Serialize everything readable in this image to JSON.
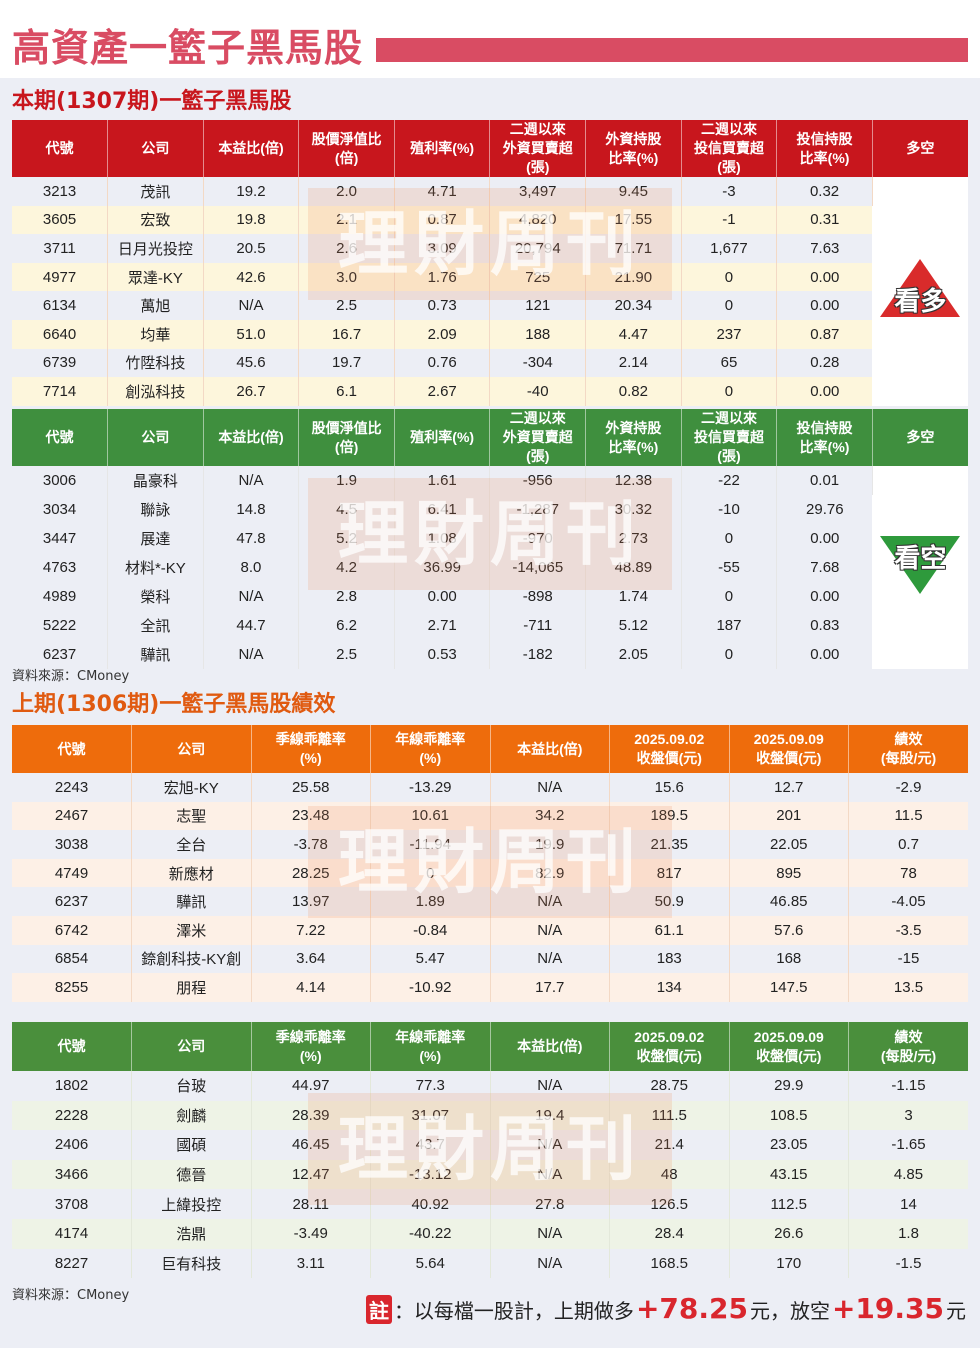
{
  "title": "高資產一籃子黑馬股",
  "watermark": "理財周刊",
  "colors": {
    "title": "#d94c63",
    "bull_header": "#c8161d",
    "bear_header": "#3f8f3e",
    "perf_header": "#ee6c0c",
    "highlight": "#d9262d"
  },
  "current": {
    "title": "本期(1307期)一籃子黑馬股",
    "headers": [
      "代號",
      "公司",
      "本益比(倍)",
      "股價淨值比\n(倍)",
      "殖利率(%)",
      "二週以來\n外資買賣超(張)",
      "外資持股\n比率(%)",
      "二週以來\n投信買賣超(張)",
      "投信持股\n比率(%)",
      "多空"
    ],
    "bull": {
      "label": "看多",
      "rows": [
        [
          "3213",
          "茂訊",
          "19.2",
          "2.0",
          "4.71",
          "3,497",
          "9.45",
          "-3",
          "0.32"
        ],
        [
          "3605",
          "宏致",
          "19.8",
          "2.1",
          "0.87",
          "4,820",
          "17.55",
          "-1",
          "0.31"
        ],
        [
          "3711",
          "日月光投控",
          "20.5",
          "2.6",
          "3.09",
          "20,794",
          "71.71",
          "1,677",
          "7.63"
        ],
        [
          "4977",
          "眾達-KY",
          "42.6",
          "3.0",
          "1.76",
          "725",
          "21.90",
          "0",
          "0.00"
        ],
        [
          "6134",
          "萬旭",
          "N/A",
          "2.5",
          "0.73",
          "121",
          "20.34",
          "0",
          "0.00"
        ],
        [
          "6640",
          "均華",
          "51.0",
          "16.7",
          "2.09",
          "188",
          "4.47",
          "237",
          "0.87"
        ],
        [
          "6739",
          "竹陞科技",
          "45.6",
          "19.7",
          "0.76",
          "-304",
          "2.14",
          "65",
          "0.28"
        ],
        [
          "7714",
          "創泓科技",
          "26.7",
          "6.1",
          "2.67",
          "-40",
          "0.82",
          "0",
          "0.00"
        ]
      ]
    },
    "bear": {
      "label": "看空",
      "rows": [
        [
          "3006",
          "晶豪科",
          "N/A",
          "1.9",
          "1.61",
          "-956",
          "12.38",
          "-22",
          "0.01"
        ],
        [
          "3034",
          "聯詠",
          "14.8",
          "4.5",
          "6.41",
          "-1,287",
          "30.32",
          "-10",
          "29.76"
        ],
        [
          "3447",
          "展達",
          "47.8",
          "5.2",
          "1.08",
          "-970",
          "2.73",
          "0",
          "0.00"
        ],
        [
          "4763",
          "材料*-KY",
          "8.0",
          "4.2",
          "36.99",
          "-14,065",
          "48.89",
          "-55",
          "7.68"
        ],
        [
          "4989",
          "榮科",
          "N/A",
          "2.8",
          "0.00",
          "-898",
          "1.74",
          "0",
          "0.00"
        ],
        [
          "5222",
          "全訊",
          "44.7",
          "6.2",
          "2.71",
          "-711",
          "5.12",
          "187",
          "0.83"
        ],
        [
          "6237",
          "驊訊",
          "N/A",
          "2.5",
          "0.53",
          "-182",
          "2.05",
          "0",
          "0.00"
        ]
      ]
    },
    "source": "資料來源：CMoney"
  },
  "previous": {
    "title": "上期(1306期)一籃子黑馬股績效",
    "headers": [
      "代號",
      "公司",
      "季線乖離率\n(%)",
      "年線乖離率\n(%)",
      "本益比(倍)",
      "2025.09.02\n收盤價(元)",
      "2025.09.09\n收盤價(元)",
      "績效\n(每股/元)"
    ],
    "long_rows": [
      [
        "2243",
        "宏旭-KY",
        "25.58",
        "-13.29",
        "N/A",
        "15.6",
        "12.7",
        "-2.9"
      ],
      [
        "2467",
        "志聖",
        "23.48",
        "10.61",
        "34.2",
        "189.5",
        "201",
        "11.5"
      ],
      [
        "3038",
        "全台",
        "-3.78",
        "-11.94",
        "19.9",
        "21.35",
        "22.05",
        "0.7"
      ],
      [
        "4749",
        "新應材",
        "28.25",
        "0",
        "82.9",
        "817",
        "895",
        "78"
      ],
      [
        "6237",
        "驊訊",
        "13.97",
        "1.89",
        "N/A",
        "50.9",
        "46.85",
        "-4.05"
      ],
      [
        "6742",
        "澤米",
        "7.22",
        "-0.84",
        "N/A",
        "61.1",
        "57.6",
        "-3.5"
      ],
      [
        "6854",
        "錼創科技-KY創",
        "3.64",
        "5.47",
        "N/A",
        "183",
        "168",
        "-15"
      ],
      [
        "8255",
        "朋程",
        "4.14",
        "-10.92",
        "17.7",
        "134",
        "147.5",
        "13.5"
      ]
    ],
    "short_rows": [
      [
        "1802",
        "台玻",
        "44.97",
        "77.3",
        "N/A",
        "28.75",
        "29.9",
        "-1.15"
      ],
      [
        "2228",
        "劍麟",
        "28.39",
        "31.07",
        "19.4",
        "111.5",
        "108.5",
        "3"
      ],
      [
        "2406",
        "國碩",
        "46.45",
        "43.7",
        "N/A",
        "21.4",
        "23.05",
        "-1.65"
      ],
      [
        "3466",
        "德晉",
        "12.47",
        "-13.12",
        "N/A",
        "48",
        "43.15",
        "4.85"
      ],
      [
        "3708",
        "上緯投控",
        "28.11",
        "40.92",
        "27.8",
        "126.5",
        "112.5",
        "14"
      ],
      [
        "4174",
        "浩鼎",
        "-3.49",
        "-40.22",
        "N/A",
        "28.4",
        "26.6",
        "1.8"
      ],
      [
        "8227",
        "巨有科技",
        "3.11",
        "5.64",
        "N/A",
        "168.5",
        "170",
        "-1.5"
      ]
    ],
    "source": "資料來源：CMoney"
  },
  "note": {
    "tag": "註",
    "text1": "：以每檔一股計，上期做多",
    "long_value": "+78.25",
    "unit1": " 元，放空",
    "short_value": "+19.35",
    "unit2": " 元"
  }
}
